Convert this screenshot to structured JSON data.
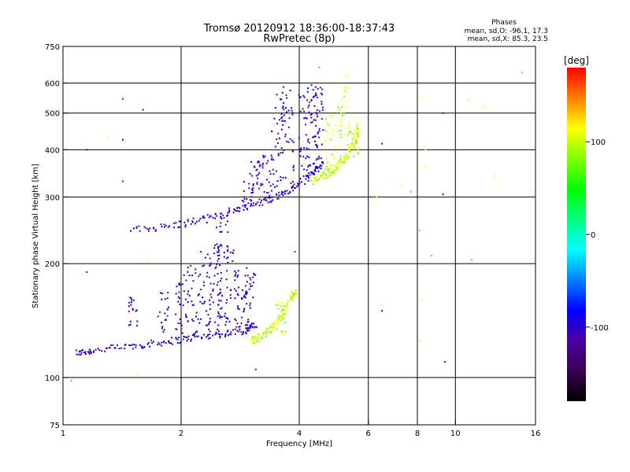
{
  "chart_data": {
    "type": "scatter",
    "title": "Tromsø 20120912 18:36:00-18:37:43",
    "subtitle": "RwPretec (8p)",
    "xlabel": "Frequency [MHz]",
    "ylabel": "Stationary phase Virtual Height [km]",
    "x_scale": "log",
    "y_scale": "log",
    "xlim": [
      1,
      16
    ],
    "ylim": [
      75,
      750
    ],
    "x_ticks": [
      1,
      2,
      4,
      6,
      8,
      10,
      16
    ],
    "y_ticks": [
      75,
      100,
      200,
      300,
      400,
      500,
      600,
      750
    ],
    "x_grid": [
      2,
      4,
      6,
      8,
      10
    ],
    "y_grid": [
      100,
      200,
      300,
      400,
      500,
      600
    ],
    "grid": true,
    "stats": {
      "heading": "Phases",
      "line_o": "mean, sd,O: -96.1, 17.3",
      "line_x": "mean, sd,X:  85.3, 23.5"
    },
    "colorbar": {
      "label": "[deg]",
      "ticks": [
        100,
        0,
        -100
      ],
      "range": [
        -180,
        180
      ],
      "colors": [
        "#000000",
        "#3c0050",
        "#4b00a0",
        "#0000ff",
        "#0080ff",
        "#00ffff",
        "#00ff80",
        "#00ff00",
        "#80ff00",
        "#ffff00",
        "#ff8000",
        "#ff0000"
      ]
    },
    "series": [
      {
        "mode": "O",
        "color_value": -100,
        "traces": [
          {
            "curve": [
              [
                1.08,
                116
              ],
              [
                1.2,
                118
              ],
              [
                1.5,
                121
              ],
              [
                1.8,
                124
              ],
              [
                2.1,
                127
              ],
              [
                2.5,
                130
              ],
              [
                2.9,
                133
              ],
              [
                3.1,
                138
              ]
            ]
          },
          {
            "curve": [
              [
                1.5,
                245
              ],
              [
                1.9,
                252
              ],
              [
                2.3,
                262
              ],
              [
                2.7,
                276
              ],
              [
                3.1,
                288
              ],
              [
                3.5,
                300
              ],
              [
                3.9,
                318
              ],
              [
                4.3,
                345
              ],
              [
                4.6,
                370
              ]
            ]
          }
        ],
        "columns": [
          {
            "x": 1.5,
            "y": [
              135,
              165
            ]
          },
          {
            "x": 1.8,
            "y": [
              132,
              170
            ]
          },
          {
            "x": 2.0,
            "y": [
              130,
              190
            ]
          },
          {
            "x": 2.15,
            "y": [
              130,
              200
            ]
          },
          {
            "x": 2.3,
            "y": [
              130,
              215
            ]
          },
          {
            "x": 2.45,
            "y": [
              132,
              250
            ]
          },
          {
            "x": 2.55,
            "y": [
              132,
              265
            ]
          },
          {
            "x": 2.7,
            "y": [
              133,
              220
            ]
          },
          {
            "x": 2.85,
            "y": [
              135,
              200
            ]
          },
          {
            "x": 3.0,
            "y": [
              135,
              195
            ]
          },
          {
            "x": 2.95,
            "y": [
              290,
              330
            ]
          },
          {
            "x": 3.1,
            "y": [
              300,
              380
            ]
          },
          {
            "x": 3.25,
            "y": [
              300,
              400
            ]
          },
          {
            "x": 3.5,
            "y": [
              310,
              560
            ]
          },
          {
            "x": 3.75,
            "y": [
              320,
              590
            ]
          },
          {
            "x": 4.1,
            "y": [
              340,
              560
            ]
          },
          {
            "x": 4.3,
            "y": [
              350,
              600
            ]
          },
          {
            "x": 4.45,
            "y": [
              360,
              590
            ]
          }
        ]
      },
      {
        "mode": "X",
        "color_value": 100,
        "traces": [
          {
            "curve": [
              [
                3.0,
                125
              ],
              [
                3.2,
                128
              ],
              [
                3.4,
                135
              ],
              [
                3.6,
                145
              ],
              [
                3.8,
                160
              ],
              [
                3.9,
                170
              ]
            ]
          },
          {
            "curve": [
              [
                4.3,
                330
              ],
              [
                4.6,
                340
              ],
              [
                4.9,
                355
              ],
              [
                5.2,
                375
              ],
              [
                5.5,
                410
              ],
              [
                5.7,
                460
              ]
            ]
          }
        ],
        "columns": [
          {
            "x": 3.6,
            "y": [
              130,
              160
            ]
          },
          {
            "x": 4.8,
            "y": [
              340,
              500
            ]
          },
          {
            "x": 5.2,
            "y": [
              360,
              590
            ]
          },
          {
            "x": 5.5,
            "y": [
              380,
              470
            ]
          }
        ]
      }
    ],
    "scattered_points": [
      {
        "x": 1.15,
        "y": 400,
        "v": -110
      },
      {
        "x": 1.3,
        "y": 430,
        "v": 120
      },
      {
        "x": 1.42,
        "y": 545,
        "v": -100
      },
      {
        "x": 1.42,
        "y": 425,
        "v": -95
      },
      {
        "x": 1.42,
        "y": 330,
        "v": -110
      },
      {
        "x": 1.6,
        "y": 510,
        "v": -130
      },
      {
        "x": 1.15,
        "y": 190,
        "v": -110
      },
      {
        "x": 1.65,
        "y": 205,
        "v": 110
      },
      {
        "x": 1.05,
        "y": 98,
        "v": 150
      },
      {
        "x": 1.55,
        "y": 102,
        "v": 120
      },
      {
        "x": 3.1,
        "y": 105,
        "v": -100
      },
      {
        "x": 3.9,
        "y": 215,
        "v": 170
      },
      {
        "x": 4.5,
        "y": 660,
        "v": 150
      },
      {
        "x": 5.3,
        "y": 630,
        "v": 110
      },
      {
        "x": 6.5,
        "y": 415,
        "v": -110
      },
      {
        "x": 6.3,
        "y": 300,
        "v": 110
      },
      {
        "x": 7.3,
        "y": 320,
        "v": 110
      },
      {
        "x": 7.7,
        "y": 310,
        "v": 20
      },
      {
        "x": 8.2,
        "y": 545,
        "v": 110
      },
      {
        "x": 8.4,
        "y": 400,
        "v": 110
      },
      {
        "x": 8.4,
        "y": 360,
        "v": 110
      },
      {
        "x": 8.7,
        "y": 210,
        "v": 20
      },
      {
        "x": 9.3,
        "y": 500,
        "v": -100
      },
      {
        "x": 9.3,
        "y": 305,
        "v": -110
      },
      {
        "x": 9.4,
        "y": 110,
        "v": -110
      },
      {
        "x": 10.8,
        "y": 540,
        "v": 110
      },
      {
        "x": 11,
        "y": 205,
        "v": 20
      },
      {
        "x": 11.8,
        "y": 520,
        "v": 110
      },
      {
        "x": 12.6,
        "y": 340,
        "v": 130
      },
      {
        "x": 14.8,
        "y": 640,
        "v": 10
      },
      {
        "x": 15.7,
        "y": 310,
        "v": 110
      },
      {
        "x": 6.5,
        "y": 150,
        "v": -110
      },
      {
        "x": 6.5,
        "y": 155,
        "v": 110
      },
      {
        "x": 8.1,
        "y": 245,
        "v": 20
      },
      {
        "x": 8.1,
        "y": 125,
        "v": 110
      },
      {
        "x": 8.2,
        "y": 160,
        "v": 110
      }
    ]
  }
}
